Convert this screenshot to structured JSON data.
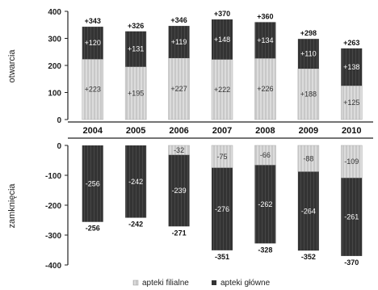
{
  "chart_data": [
    {
      "type": "bar",
      "stacked": true,
      "ylabel": "otwarcia",
      "ylim": [
        0,
        400
      ],
      "yticks": [
        0,
        100,
        200,
        300,
        400
      ],
      "categories": [
        "2004",
        "2005",
        "2006",
        "2007",
        "2008",
        "2009",
        "2010"
      ],
      "series": [
        {
          "name": "apteki filialne",
          "values": [
            223,
            195,
            227,
            222,
            226,
            188,
            125
          ],
          "labels": [
            "+223",
            "+195",
            "+227",
            "+222",
            "+226",
            "+188",
            "+125"
          ]
        },
        {
          "name": "apteki główne",
          "values": [
            120,
            131,
            119,
            148,
            134,
            110,
            138
          ],
          "labels": [
            "+120",
            "+131",
            "+119",
            "+148",
            "+134",
            "+110",
            "+138"
          ]
        }
      ],
      "totals": [
        343,
        326,
        346,
        370,
        360,
        298,
        263
      ],
      "total_labels": [
        "+343",
        "+326",
        "+346",
        "+370",
        "+360",
        "+298",
        "+263"
      ]
    },
    {
      "type": "bar",
      "stacked": true,
      "ylabel": "zamknięcia",
      "ylim": [
        -400,
        0
      ],
      "yticks": [
        0,
        -100,
        -200,
        -300,
        -400
      ],
      "categories": [
        "2004",
        "2005",
        "2006",
        "2007",
        "2008",
        "2009",
        "2010"
      ],
      "series": [
        {
          "name": "apteki filialne",
          "values": [
            0,
            0,
            -32,
            -75,
            -66,
            -88,
            -109
          ],
          "labels": [
            "",
            "",
            "-32",
            "-75",
            "-66",
            "-88",
            "-109"
          ]
        },
        {
          "name": "apteki główne",
          "values": [
            -256,
            -242,
            -239,
            -276,
            -262,
            -264,
            -261
          ],
          "labels": [
            "-256",
            "-242",
            "-239",
            "-276",
            "-262",
            "-264",
            "-261"
          ]
        }
      ],
      "totals": [
        -256,
        -242,
        -271,
        -351,
        -328,
        -352,
        -370
      ],
      "total_labels": [
        "-256",
        "-242",
        "-271",
        "-351",
        "-328",
        "-352",
        "-370"
      ]
    }
  ],
  "legend": {
    "position": "bottom",
    "items": [
      {
        "name": "apteki filialne",
        "color": "#dcdcdc"
      },
      {
        "name": "apteki główne",
        "color": "#333333"
      }
    ]
  },
  "colors": {
    "light": "#dcdcdc",
    "light_stripe": "#c4c4c4",
    "dark": "#333333",
    "dark_stripe": "#4a4a4a"
  }
}
